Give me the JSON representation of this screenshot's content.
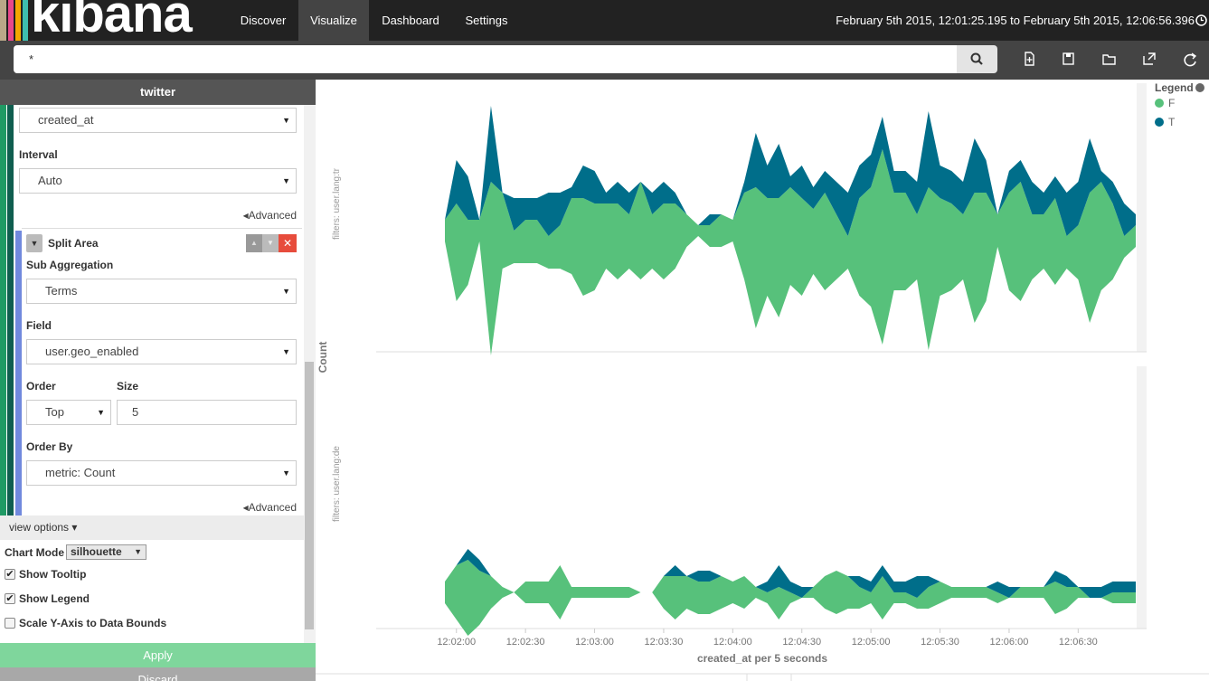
{
  "nav": {
    "logo": "kibana",
    "items": [
      "Discover",
      "Visualize",
      "Dashboard",
      "Settings"
    ],
    "active": 1,
    "time_range": "February 5th 2015, 12:01:25.195 to February 5th 2015, 12:06:56.396"
  },
  "search": {
    "query": "*"
  },
  "sidebar": {
    "title": "twitter",
    "field_value": "created_at",
    "interval_label": "Interval",
    "interval_value": "Auto",
    "advanced_1": "Advanced",
    "split_title": "Split Area",
    "sub_agg_label": "Sub Aggregation",
    "sub_agg_value": "Terms",
    "field_label": "Field",
    "field2_value": "user.geo_enabled",
    "order_label": "Order",
    "order_value": "Top",
    "size_label": "Size",
    "size_value": "5",
    "order_by_label": "Order By",
    "order_by_value": "metric: Count",
    "advanced_2": "Advanced",
    "view_options": "view options",
    "chart_mode_label": "Chart Mode",
    "chart_mode_value": "silhouette",
    "checkboxes": [
      {
        "label": "Show Tooltip",
        "checked": true
      },
      {
        "label": "Show Legend",
        "checked": true
      },
      {
        "label": "Scale Y-Axis to Data Bounds",
        "checked": false
      }
    ],
    "apply": "Apply",
    "discard": "Discard"
  },
  "chart_data": {
    "type": "area",
    "x_label": "created_at per 5 seconds",
    "y_label": "Count",
    "legend_title": "Legend",
    "categories": [
      "12:01:55",
      "12:02:00",
      "12:02:05",
      "12:02:10",
      "12:02:15",
      "12:02:20",
      "12:02:25",
      "12:02:30",
      "12:02:35",
      "12:02:40",
      "12:02:45",
      "12:02:50",
      "12:02:55",
      "12:03:00",
      "12:03:05",
      "12:03:10",
      "12:03:15",
      "12:03:20",
      "12:03:25",
      "12:03:30",
      "12:03:35",
      "12:03:40",
      "12:03:45",
      "12:03:50",
      "12:03:55",
      "12:04:00",
      "12:04:05",
      "12:04:10",
      "12:04:15",
      "12:04:20",
      "12:04:25",
      "12:04:30",
      "12:04:35",
      "12:04:40",
      "12:04:45",
      "12:04:50",
      "12:04:55",
      "12:05:00",
      "12:05:05",
      "12:05:10",
      "12:05:15",
      "12:05:20",
      "12:05:25",
      "12:05:30",
      "12:05:35",
      "12:05:40",
      "12:05:45",
      "12:05:50",
      "12:05:55",
      "12:06:00",
      "12:06:05",
      "12:06:10",
      "12:06:15",
      "12:06:20",
      "12:06:25",
      "12:06:30",
      "12:06:35",
      "12:06:40",
      "12:06:45",
      "12:06:50",
      "12:06:55"
    ],
    "xticks": [
      "12:02:00",
      "12:02:30",
      "12:03:00",
      "12:03:30",
      "12:04:00",
      "12:04:30",
      "12:05:00",
      "12:05:30",
      "12:06:00",
      "12:06:30"
    ],
    "panels": [
      {
        "label": "filters: user.lang:tr",
        "series": [
          {
            "name": "F",
            "color": "#57c17b",
            "values": [
              2,
              9,
              6,
              2,
              16,
              7,
              3,
              4,
              4,
              3,
              4,
              7,
              9,
              8,
              6,
              7,
              5,
              9,
              5,
              7,
              6,
              3,
              1,
              2,
              3,
              2,
              8,
              13,
              9,
              11,
              9,
              9,
              6,
              9,
              6,
              3,
              9,
              11,
              18,
              9,
              9,
              6,
              15,
              9,
              8,
              6,
              12,
              10,
              3,
              9,
              11,
              6,
              5,
              8,
              3,
              5,
              12,
              10,
              7,
              2,
              2
            ]
          },
          {
            "name": "T",
            "color": "#006e8a",
            "values": [
              0,
              4,
              4,
              0,
              7,
              0,
              3,
              2,
              2,
              4,
              3,
              1,
              3,
              3,
              1,
              2,
              2,
              0,
              2,
              2,
              1,
              0,
              0,
              1,
              0,
              0,
              1,
              5,
              3,
              5,
              1,
              3,
              2,
              2,
              3,
              4,
              3,
              3,
              3,
              2,
              2,
              3,
              7,
              3,
              3,
              3,
              5,
              3,
              0,
              2,
              2,
              3,
              2,
              2,
              4,
              4,
              5,
              1,
              2,
              3,
              1
            ]
          }
        ]
      },
      {
        "label": "filters: user.lang:de",
        "series": [
          {
            "name": "F",
            "color": "#57c17b",
            "values": [
              2,
              5,
              7,
              5,
              3,
              1,
              0,
              2,
              2,
              2,
              5,
              1,
              1,
              1,
              1,
              1,
              1,
              0,
              0,
              3,
              4,
              3,
              3,
              3,
              3,
              2,
              3,
              1,
              1,
              3,
              1,
              0,
              1,
              3,
              4,
              3,
              2,
              1,
              4,
              1,
              1,
              1,
              2,
              2,
              1,
              1,
              1,
              1,
              1,
              0,
              1,
              1,
              1,
              3,
              2,
              1,
              0,
              0,
              1,
              1,
              1
            ]
          },
          {
            "name": "T",
            "color": "#006e8a",
            "values": [
              0,
              0,
              1,
              1,
              0,
              0,
              0,
              0,
              0,
              0,
              0,
              0,
              0,
              0,
              0,
              0,
              0,
              0,
              0,
              0,
              1,
              0,
              1,
              1,
              0,
              0,
              0,
              0,
              1,
              2,
              1,
              1,
              0,
              0,
              0,
              0,
              1,
              1,
              1,
              1,
              1,
              2,
              1,
              0,
              0,
              0,
              0,
              0,
              1,
              1,
              0,
              0,
              0,
              1,
              1,
              0,
              1,
              1,
              1,
              1,
              1
            ]
          }
        ]
      }
    ]
  }
}
